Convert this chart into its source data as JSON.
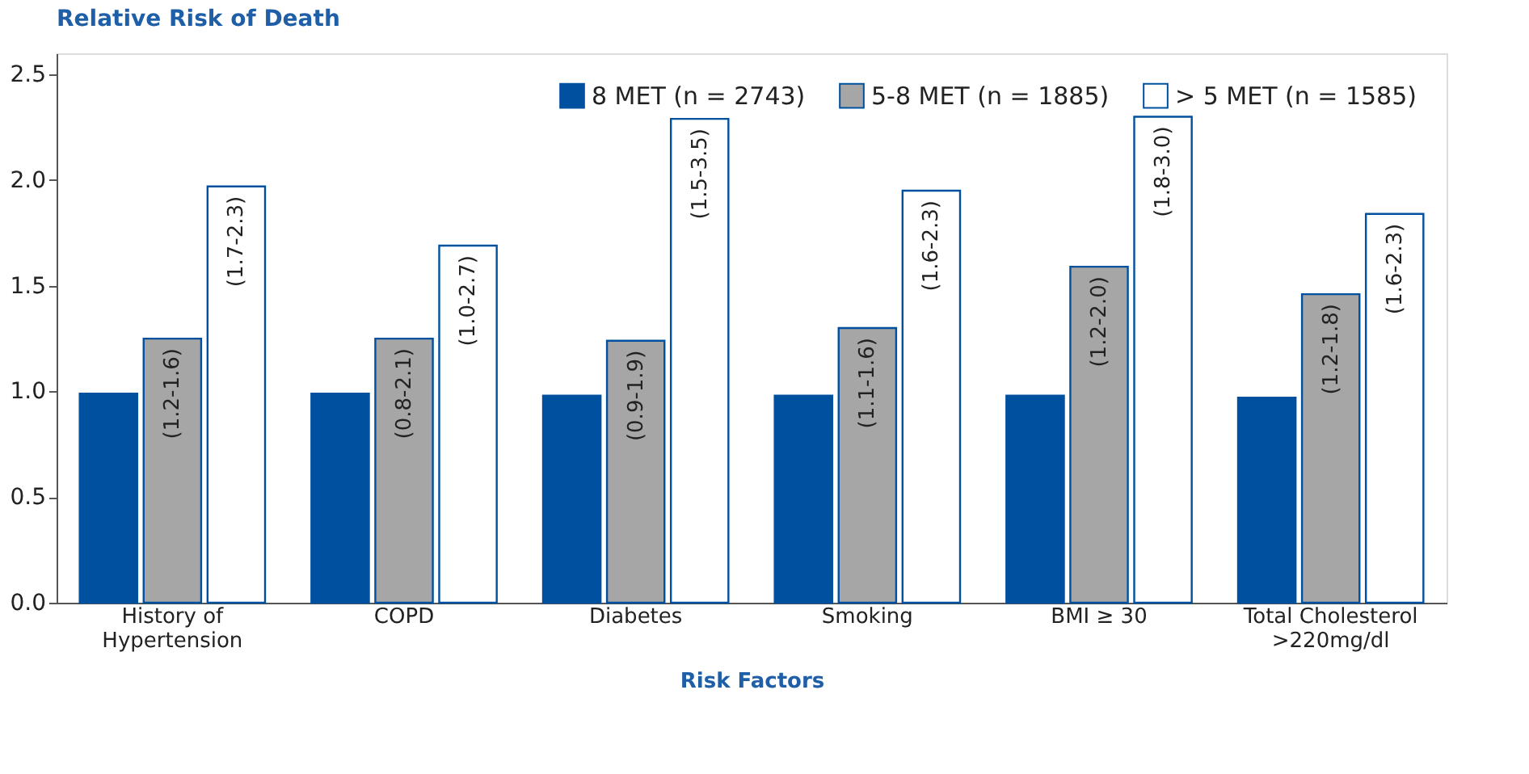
{
  "chart_data": {
    "type": "bar",
    "title": "Relative Risk of Death",
    "xlabel": "Risk Factors",
    "categories": [
      "History of Hypertension",
      "COPD",
      "Diabetes",
      "Smoking",
      "BMI ≥ 30",
      "Total Cholesterol >220mg/dl"
    ],
    "series": [
      {
        "name": "8 MET (n = 2743)",
        "color": "#0050a0",
        "values": [
          0.99,
          0.99,
          0.98,
          0.98,
          0.98,
          0.97
        ]
      },
      {
        "name": "5-8 MET (n = 1885)",
        "color": "#a6a6a6",
        "values": [
          1.25,
          1.25,
          1.24,
          1.3,
          1.59,
          1.46
        ],
        "value_labels": [
          "(1.2-1.6)",
          "(0.8-2.1)",
          "(0.9-1.9)",
          "(1.1-1.6)",
          "(1.2-2.0)",
          "(1.2-1.8)"
        ]
      },
      {
        "name": "> 5 MET (n = 1585)",
        "color": "#ffffff",
        "values": [
          1.97,
          1.69,
          2.29,
          1.95,
          2.3,
          1.84
        ],
        "value_labels": [
          "(1.7-2.3)",
          "(1.0-2.7)",
          "(1.5-3.5)",
          "(1.6-2.3)",
          "(1.8-3.0)",
          "(1.6-2.3)"
        ]
      }
    ],
    "ylim": [
      0,
      2.6
    ],
    "yticks": [
      {
        "value": 0,
        "label": "0.0"
      },
      {
        "value": 0.5,
        "label": "0.5"
      },
      {
        "value": 1,
        "label": "1.0"
      },
      {
        "value": 1.5,
        "label": "1.5"
      },
      {
        "value": 2,
        "label": "2.0"
      },
      {
        "value": 2.5,
        "label": "2.5"
      }
    ],
    "grid": false,
    "legend": "top right"
  }
}
